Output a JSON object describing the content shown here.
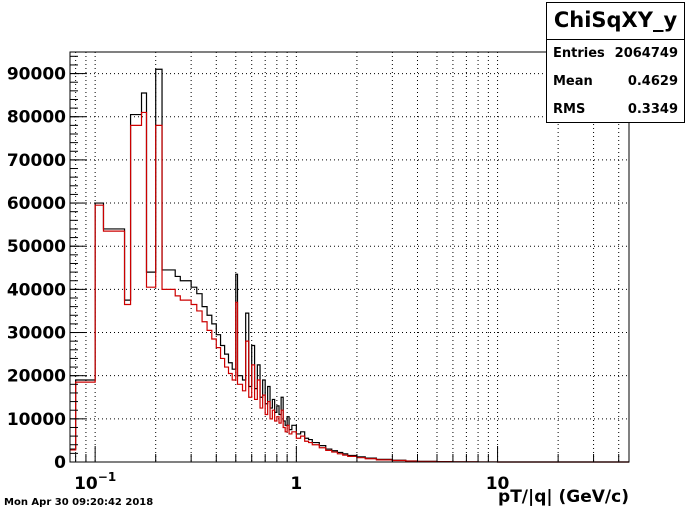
{
  "chart_data": {
    "type": "step-histogram",
    "title": "",
    "xlabel": "pT/|q| (GeV/c)",
    "ylabel": "",
    "x_scale": "log",
    "xlim": [
      0.075,
      45
    ],
    "ylim": [
      0,
      95000
    ],
    "y_ticks": [
      0,
      10000,
      20000,
      30000,
      40000,
      50000,
      60000,
      70000,
      80000,
      90000
    ],
    "x_major_labels": [
      {
        "value": 0.1,
        "base": "10",
        "exp": "−1"
      },
      {
        "value": 1,
        "base": "1",
        "exp": ""
      },
      {
        "value": 10,
        "base": "10",
        "exp": ""
      }
    ],
    "grid": true,
    "series": [
      {
        "color": "#000000",
        "edges": [
          0.075,
          0.08,
          0.1,
          0.11,
          0.14,
          0.15,
          0.17,
          0.18,
          0.2,
          0.215,
          0.25,
          0.265,
          0.3,
          0.32,
          0.34,
          0.36,
          0.38,
          0.4,
          0.42,
          0.44,
          0.46,
          0.48,
          0.5,
          0.51,
          0.54,
          0.56,
          0.58,
          0.6,
          0.62,
          0.64,
          0.66,
          0.68,
          0.7,
          0.72,
          0.74,
          0.76,
          0.78,
          0.8,
          0.82,
          0.84,
          0.86,
          0.88,
          0.9,
          0.92,
          0.95,
          1.0,
          1.05,
          1.1,
          1.15,
          1.2,
          1.3,
          1.4,
          1.5,
          1.6,
          1.7,
          1.8,
          2.0,
          2.2,
          2.5,
          3.0,
          3.5,
          4.0,
          5.0,
          6.0,
          8.0,
          10.0,
          45.0
        ],
        "values": [
          3000,
          19000,
          60000,
          54000,
          37500,
          80500,
          85500,
          44000,
          91000,
          44500,
          43000,
          42000,
          40500,
          39000,
          36000,
          34000,
          32000,
          29500,
          27000,
          25000,
          23000,
          21500,
          43500,
          20000,
          19000,
          34500,
          17500,
          27000,
          17000,
          22500,
          15000,
          19000,
          13500,
          17500,
          12500,
          14500,
          11500,
          13000,
          11000,
          15000,
          9500,
          8500,
          10500,
          7500,
          8500,
          6500,
          7000,
          5500,
          5200,
          4500,
          3800,
          3000,
          2600,
          2200,
          1900,
          1500,
          1200,
          900,
          600,
          400,
          250,
          150,
          80,
          40,
          15,
          0
        ]
      },
      {
        "color": "#cc0000",
        "edges": [
          0.075,
          0.08,
          0.1,
          0.11,
          0.14,
          0.15,
          0.17,
          0.18,
          0.2,
          0.215,
          0.25,
          0.265,
          0.3,
          0.32,
          0.34,
          0.36,
          0.38,
          0.4,
          0.42,
          0.44,
          0.46,
          0.48,
          0.5,
          0.51,
          0.54,
          0.56,
          0.58,
          0.6,
          0.62,
          0.64,
          0.66,
          0.68,
          0.7,
          0.72,
          0.74,
          0.76,
          0.78,
          0.8,
          0.82,
          0.84,
          0.86,
          0.88,
          0.9,
          0.92,
          0.95,
          1.0,
          1.05,
          1.1,
          1.15,
          1.2,
          1.3,
          1.4,
          1.5,
          1.6,
          1.7,
          1.8,
          2.0,
          2.2,
          2.5,
          3.0,
          3.5,
          4.0,
          5.0,
          6.0,
          8.0,
          10.0,
          45.0
        ],
        "values": [
          2800,
          18500,
          59500,
          53500,
          36500,
          78000,
          81000,
          40500,
          78000,
          40000,
          38500,
          37500,
          36500,
          35000,
          32500,
          30500,
          28500,
          26500,
          24000,
          22000,
          20500,
          19000,
          37000,
          18000,
          16500,
          28000,
          15000,
          22500,
          14500,
          19000,
          12500,
          15500,
          11000,
          14000,
          10000,
          12000,
          9500,
          10500,
          9000,
          12000,
          8000,
          7000,
          8500,
          6500,
          7000,
          5500,
          6000,
          4800,
          4500,
          4000,
          3300,
          2700,
          2300,
          1900,
          1600,
          1300,
          1000,
          750,
          500,
          350,
          200,
          120,
          70,
          30,
          10,
          0
        ]
      }
    ]
  },
  "stats": {
    "title": "ChiSqXY_y",
    "rows": [
      {
        "label": "Entries",
        "value": "2064749"
      },
      {
        "label": "Mean",
        "value": "0.4629"
      },
      {
        "label": "RMS",
        "value": "0.3349"
      }
    ]
  },
  "timestamp": "Mon Apr 30 09:20:42 2018"
}
